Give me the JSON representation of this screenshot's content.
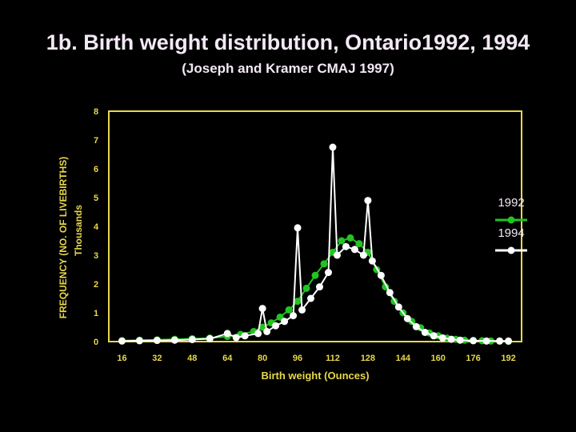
{
  "header": {
    "title": "1b. Birth weight distribution, Ontario1992, 1994",
    "subtitle": "(Joseph and Kramer CMAJ 1997)"
  },
  "chart_data": {
    "type": "line",
    "xlabel": "Birth weight (Ounces)",
    "ylabel": "FREQUENCY (NO. OF LIVEBIRTHS)",
    "ylabel_units": "Thousands",
    "xlim": [
      10,
      198
    ],
    "ylim": [
      0,
      8
    ],
    "x_ticks": [
      16,
      32,
      48,
      64,
      80,
      96,
      112,
      128,
      144,
      160,
      176,
      192
    ],
    "y_ticks": [
      0,
      1,
      2,
      3,
      4,
      5,
      6,
      7,
      8
    ],
    "grid": false,
    "legend_position": "right",
    "colors": {
      "frame": "#e8d84a",
      "text": "#e8d84a",
      "series_1992": "#22c322",
      "series_1994": "#ffffff"
    },
    "series": [
      {
        "name": "1992",
        "x": [
          16,
          24,
          32,
          40,
          48,
          56,
          64,
          70,
          76,
          80,
          84,
          88,
          92,
          96,
          100,
          104,
          108,
          112,
          116,
          120,
          124,
          128,
          132,
          136,
          140,
          144,
          148,
          152,
          156,
          160,
          164,
          168,
          172,
          176,
          180,
          184,
          188,
          192
        ],
        "values": [
          0.03,
          0.05,
          0.06,
          0.08,
          0.1,
          0.12,
          0.18,
          0.25,
          0.35,
          0.5,
          0.65,
          0.85,
          1.1,
          1.4,
          1.85,
          2.3,
          2.7,
          3.1,
          3.5,
          3.6,
          3.4,
          3.1,
          2.5,
          1.9,
          1.4,
          1.0,
          0.7,
          0.48,
          0.3,
          0.2,
          0.12,
          0.08,
          0.05,
          0.04,
          0.03,
          0.02,
          0.02,
          0.01
        ]
      },
      {
        "name": "1994",
        "x": [
          16,
          24,
          32,
          40,
          48,
          56,
          64,
          68,
          72,
          78,
          80,
          82,
          86,
          90,
          94,
          96,
          98,
          102,
          106,
          110,
          112,
          114,
          118,
          122,
          126,
          128,
          130,
          134,
          138,
          142,
          146,
          150,
          154,
          158,
          162,
          166,
          170,
          176,
          182,
          188,
          192
        ],
        "values": [
          0.02,
          0.03,
          0.04,
          0.05,
          0.07,
          0.1,
          0.28,
          0.14,
          0.2,
          0.28,
          1.15,
          0.35,
          0.55,
          0.7,
          0.9,
          3.95,
          1.1,
          1.5,
          1.9,
          2.4,
          6.75,
          3.0,
          3.3,
          3.2,
          3.0,
          4.9,
          2.8,
          2.3,
          1.7,
          1.2,
          0.8,
          0.52,
          0.32,
          0.2,
          0.13,
          0.08,
          0.05,
          0.03,
          0.02,
          0.02,
          0.02
        ]
      }
    ]
  }
}
